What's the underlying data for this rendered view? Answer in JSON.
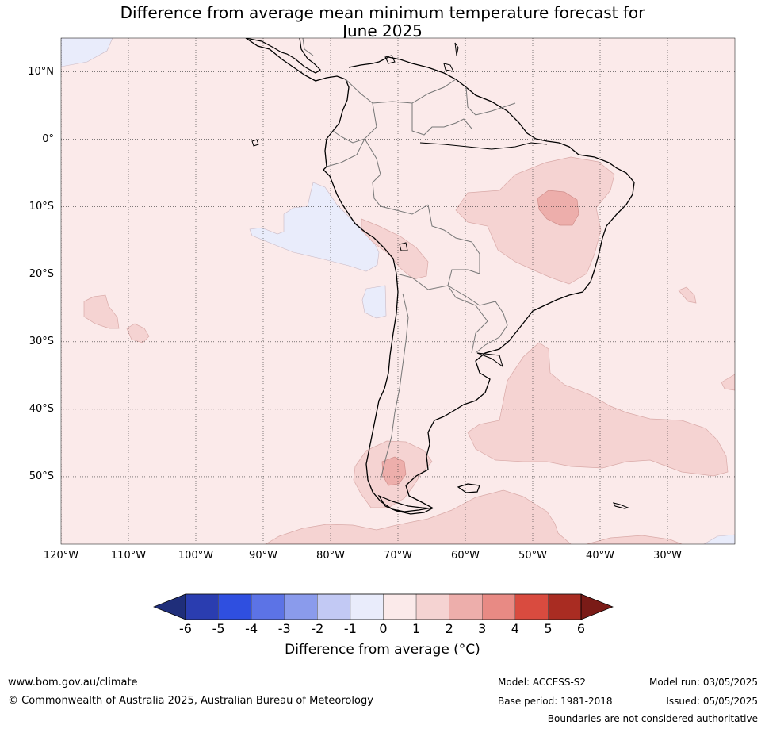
{
  "title": {
    "line1": "Difference from average mean minimum temperature forecast for",
    "line2": "June 2025"
  },
  "axes": {
    "lat_labels": [
      {
        "text": "10°N",
        "lat": 10
      },
      {
        "text": "0°",
        "lat": 0
      },
      {
        "text": "10°S",
        "lat": -10
      },
      {
        "text": "20°S",
        "lat": -20
      },
      {
        "text": "30°S",
        "lat": -30
      },
      {
        "text": "40°S",
        "lat": -40
      },
      {
        "text": "50°S",
        "lat": -50
      }
    ],
    "lon_labels": [
      {
        "text": "120°W",
        "lon": -120
      },
      {
        "text": "110°W",
        "lon": -110
      },
      {
        "text": "100°W",
        "lon": -100
      },
      {
        "text": "90°W",
        "lon": -90
      },
      {
        "text": "80°W",
        "lon": -80
      },
      {
        "text": "70°W",
        "lon": -70
      },
      {
        "text": "60°W",
        "lon": -60
      },
      {
        "text": "50°W",
        "lon": -50
      },
      {
        "text": "40°W",
        "lon": -40
      },
      {
        "text": "30°W",
        "lon": -30
      }
    ],
    "extent": {
      "lon_min": -120,
      "lon_max": -20,
      "lat_min": -60,
      "lat_max": 15
    }
  },
  "colorbar": {
    "label": "Difference from average (°C)",
    "ticks": [
      "-6",
      "-5",
      "-4",
      "-3",
      "-2",
      "-1",
      "0",
      "1",
      "2",
      "3",
      "4",
      "5",
      "6"
    ],
    "colors": [
      "#1f2e7a",
      "#2a3db0",
      "#2f4fe0",
      "#5c73e6",
      "#8a9bec",
      "#c2c9f4",
      "#e9ecfb",
      "#fbeaea",
      "#f5d3d2",
      "#edaeab",
      "#e88a84",
      "#d94b3f",
      "#a92c22",
      "#7a1b17"
    ]
  },
  "legend_map": {
    "background_anomaly": 0.5,
    "regions": [
      {
        "name": "cool-pacific-peru",
        "class": "-1 to 0"
      },
      {
        "name": "cool-pacific-chile",
        "class": "-1 to 0"
      },
      {
        "name": "cool-northwest-corner",
        "class": "-1 to 0"
      },
      {
        "name": "cool-southeast-corner",
        "class": "-1 to 0"
      },
      {
        "name": "warm-brazil",
        "class": "1 to 2"
      },
      {
        "name": "warmer-brazil-core",
        "class": "2 to 3"
      },
      {
        "name": "warm-altiplano",
        "class": "1 to 2"
      },
      {
        "name": "warm-south-atlantic",
        "class": "1 to 2"
      },
      {
        "name": "warm-patagonia",
        "class": "1 to 2"
      },
      {
        "name": "warmer-patagonia-core",
        "class": "2 to 3"
      },
      {
        "name": "warm-southern-ocean",
        "class": "1 to 2"
      },
      {
        "name": "warm-pacific-west",
        "class": "1 to 2"
      }
    ]
  },
  "footer": {
    "website": "www.bom.gov.au/climate",
    "copyright": "© Commonwealth of Australia 2025, Australian Bureau of Meteorology",
    "model": "Model: ACCESS-S2",
    "base_period": "Base period: 1981-2018",
    "model_run": "Model run: 03/05/2025",
    "issued": "Issued: 05/05/2025",
    "disclaimer": "Boundaries are not considered authoritative"
  }
}
